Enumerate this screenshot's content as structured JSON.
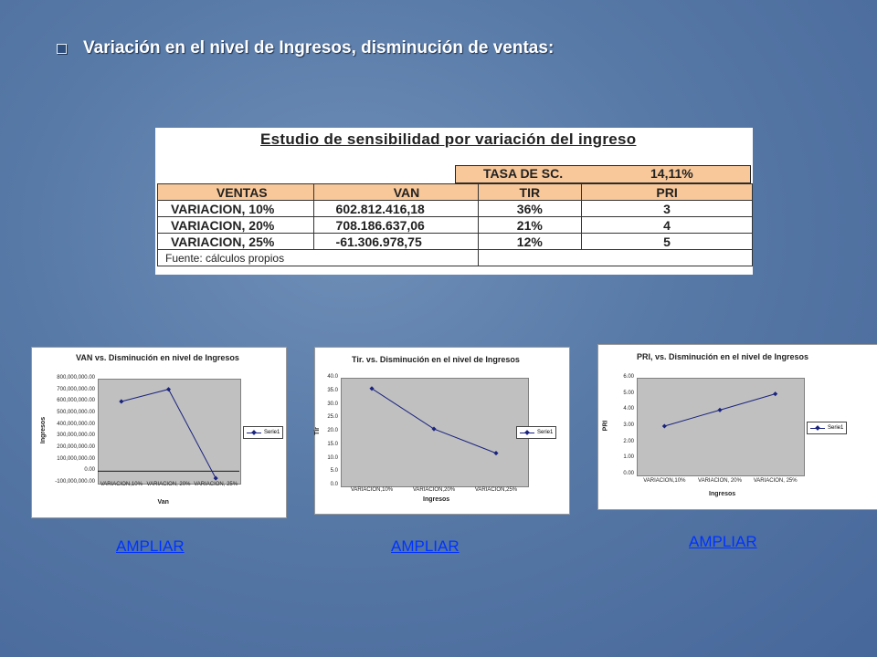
{
  "slide": {
    "heading": "Variación en el nivel de Ingresos, disminución de ventas:"
  },
  "table": {
    "title": "Estudio de sensibilidad  por variación del ingreso",
    "tasa_label": "TASA DE SC.",
    "tasa_value": "14,11%",
    "headers": [
      "VENTAS",
      "VAN",
      "TIR",
      "PRI"
    ],
    "rows": [
      [
        "VARIACION, 10%",
        "602.812.416,18",
        "36%",
        "3"
      ],
      [
        "VARIACION, 20%",
        "708.186.637,06",
        "21%",
        "4"
      ],
      [
        "VARIACION, 25%",
        "-61.306.978,75",
        "12%",
        "5"
      ]
    ],
    "source": "Fuente: cálculos propios",
    "header_color": "#f8c89a"
  },
  "chart_data": [
    {
      "type": "line",
      "title": "VAN vs. Disminución en nivel de Ingresos",
      "xlabel": "Van",
      "ylabel": "Ingresos",
      "categories": [
        "VARIACION,10%",
        "VARIACION, 20%",
        "VARIACION, 25%"
      ],
      "series": [
        {
          "name": "Serie1",
          "values": [
            602812416.18,
            708186637.06,
            -61306978.75
          ]
        }
      ],
      "ylim": [
        -100000000,
        800000000
      ],
      "yticks": [
        "800,000,000.00",
        "700,000,000.00",
        "600,000,000.00",
        "500,000,000.00",
        "400,000,000.00",
        "300,000,000.00",
        "200,000,000.00",
        "100,000,000.00",
        "0.00",
        "-100,000,000.00"
      ],
      "legend": "right",
      "color": "#1a237e"
    },
    {
      "type": "line",
      "title": "Tir. vs. Disminución en el nivel de Ingresos",
      "xlabel": "Ingresos",
      "ylabel": "Tir",
      "categories": [
        "VARIACION,10%",
        "VARIACION,20%",
        "VARIACION,25%"
      ],
      "series": [
        {
          "name": "Serie1",
          "values": [
            36,
            21,
            12
          ]
        }
      ],
      "ylim": [
        0,
        40
      ],
      "yticks": [
        "40.0",
        "35.0",
        "30.0",
        "25.0",
        "20.0",
        "15.0",
        "10.0",
        "5.0",
        "0.0"
      ],
      "legend": "right",
      "color": "#1a237e"
    },
    {
      "type": "line",
      "title": "PRI, vs. Disminución en el nivel de Ingresos",
      "xlabel": "Ingresos",
      "ylabel": "PRI",
      "categories": [
        "VARIACION,10%",
        "VARIACION, 20%",
        "VARIACION, 25%"
      ],
      "series": [
        {
          "name": "Serie1",
          "values": [
            3,
            4,
            5
          ]
        }
      ],
      "ylim": [
        0,
        6
      ],
      "yticks": [
        "6.00",
        "5.00",
        "4.00",
        "3.00",
        "2.00",
        "1.00",
        "0.00"
      ],
      "legend": "right",
      "color": "#1a237e"
    }
  ],
  "links": {
    "ampliar_1": "AMPLIAR",
    "ampliar_2": "AMPLIAR",
    "ampliar_3": "AMPLIAR"
  }
}
